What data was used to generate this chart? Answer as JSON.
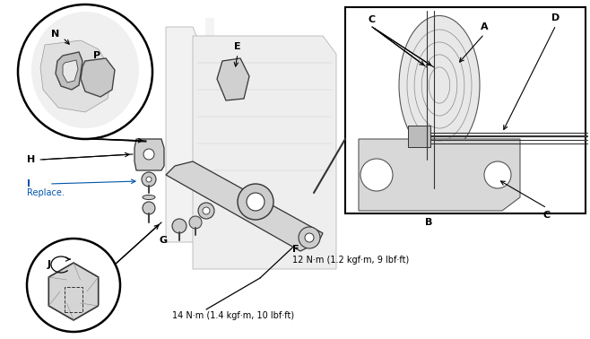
{
  "bg_color": "#ffffff",
  "line_color": "#000000",
  "blue_color": "#0055aa",
  "figsize": [
    6.58,
    3.78
  ],
  "dpi": 100,
  "torque1_label": "F",
  "torque1_text": "12 N·m (1.2 kgf·m, 9 lbf·ft)",
  "torque2_text": "14 N·m (1.4 kgf·m, 10 lbf·ft)",
  "label_fontsize": 8,
  "small_fontsize": 7,
  "torque_fontsize": 7
}
